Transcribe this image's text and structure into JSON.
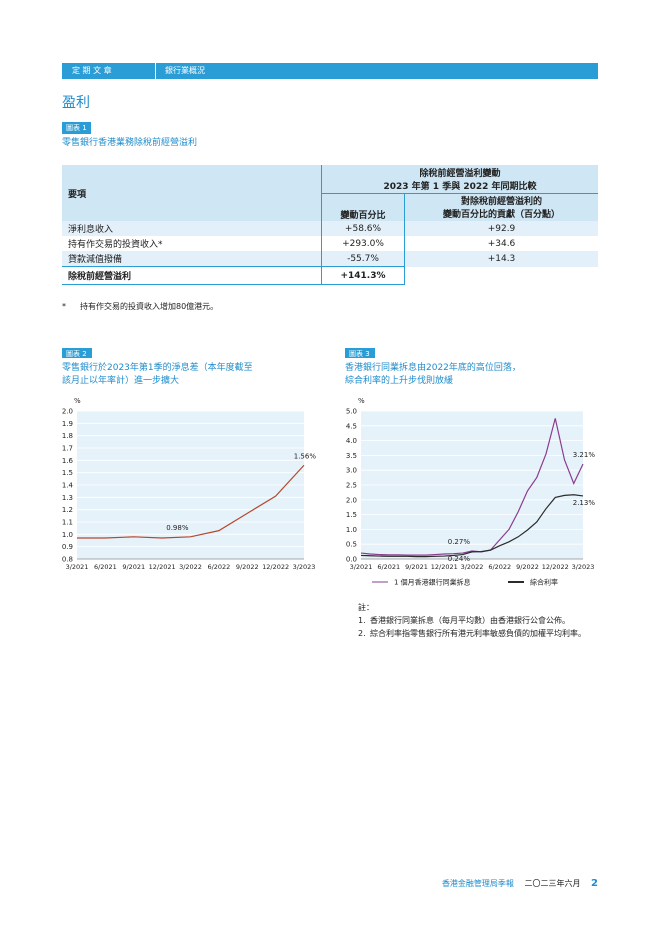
{
  "header": {
    "section": "定 期 文 章",
    "subsection": "銀行業概況"
  },
  "heading": "盈利",
  "table1": {
    "tag": "圖表 1",
    "title": "零售銀行香港業務除稅前經營溢利",
    "col_item": "要項",
    "group_title": [
      "除稅前經營溢利變動",
      "2023 年第 1 季與 2022 年同期比較"
    ],
    "col_change": "變動百分比",
    "col_contrib": [
      "對除稅前經營溢利的",
      "變動百分比的貢獻（百分點）"
    ],
    "rows": [
      [
        "淨利息收入",
        "+58.6%",
        "+92.9"
      ],
      [
        "持有作交易的投資收入*",
        "+293.0%",
        "+34.6"
      ],
      [
        "貸款減值撥備",
        "-55.7%",
        "+14.3"
      ]
    ],
    "total": {
      "label": "除稅前經營溢利",
      "change": "+141.3%"
    }
  },
  "footnote": {
    "mark": "*",
    "text": "持有作交易的投資收入增加80億港元。"
  },
  "chart_data": [
    {
      "type": "line",
      "tag": "圖表 2",
      "title": [
        "零售銀行於2023年第1季的淨息差（本年度截至",
        "該月止以年率計）進一步擴大"
      ],
      "y_label": "%",
      "categories": [
        "3/2021",
        "6/2021",
        "9/2021",
        "12/2021",
        "3/2022",
        "6/2022",
        "9/2022",
        "12/2022",
        "3/2023"
      ],
      "series": [
        {
          "color": "#b5482c",
          "values": [
            0.97,
            0.97,
            0.98,
            0.97,
            0.98,
            1.03,
            1.17,
            1.31,
            1.56
          ],
          "value_labels": [
            null,
            null,
            null,
            null,
            "0.98%",
            null,
            null,
            null,
            "1.56%"
          ]
        }
      ],
      "ylim": [
        0.8,
        2.0
      ],
      "yticks": [
        0.8,
        0.9,
        {
          "value": 1,
          "label": "1.0"
        },
        1.1,
        1.2,
        1.3,
        1.4,
        1.5,
        1.6,
        1.7,
        1.8,
        1.9,
        {
          "value": 2,
          "label": "2.0"
        }
      ],
      "grid": true
    },
    {
      "type": "line",
      "tag": "圖表 3",
      "title": [
        "香港銀行同業拆息由2022年底的高位回落，",
        "綜合利率的上升步伐則放緩"
      ],
      "y_label": "%",
      "categories": [
        "3/2021",
        null,
        null,
        "6/2021",
        null,
        null,
        "9/2021",
        null,
        null,
        "12/2021",
        null,
        null,
        "3/2022",
        null,
        null,
        "6/2022",
        null,
        null,
        "9/2022",
        null,
        null,
        "12/2022",
        null,
        null,
        "3/2023"
      ],
      "series": [
        {
          "name": "1 個月香港銀行同業拆息",
          "color": "#8a3c8e",
          "values": [
            0.2,
            0.17,
            0.15,
            0.14,
            0.14,
            0.13,
            0.13,
            0.13,
            0.15,
            0.17,
            0.18,
            0.2,
            0.27,
            0.24,
            0.3,
            0.65,
            1.0,
            1.6,
            2.3,
            2.75,
            3.55,
            4.75,
            3.35,
            2.55,
            3.21
          ],
          "value_labels": [
            null,
            null,
            null,
            null,
            null,
            null,
            null,
            null,
            null,
            null,
            null,
            null,
            "0.27%",
            null,
            null,
            null,
            null,
            null,
            null,
            null,
            null,
            null,
            null,
            null,
            "3.21%"
          ]
        },
        {
          "name": "綜合利率",
          "color": "#2b2b2b",
          "values": [
            0.12,
            0.11,
            0.1,
            0.09,
            0.09,
            0.09,
            0.08,
            0.08,
            0.09,
            0.1,
            0.12,
            0.15,
            0.24,
            0.25,
            0.3,
            0.45,
            0.58,
            0.75,
            0.98,
            1.25,
            1.7,
            2.08,
            2.15,
            2.17,
            2.13
          ],
          "value_labels": [
            null,
            null,
            null,
            null,
            null,
            null,
            null,
            null,
            null,
            null,
            null,
            null,
            "0.24%",
            null,
            null,
            null,
            null,
            null,
            null,
            null,
            null,
            null,
            null,
            null,
            "2.13%"
          ]
        }
      ],
      "ylim": [
        0,
        5
      ],
      "yticks": [
        {
          "value": 0,
          "label": "0.0"
        },
        0.5,
        {
          "value": 1,
          "label": "1.0"
        },
        1.5,
        {
          "value": 2,
          "label": "2.0"
        },
        2.5,
        {
          "value": 3,
          "label": "3.0"
        },
        3.5,
        {
          "value": 4,
          "label": "4.0"
        },
        4.5,
        {
          "value": 5,
          "label": "5.0"
        }
      ],
      "grid": true
    }
  ],
  "notes": {
    "title": "註：",
    "items": [
      {
        "num": "1.",
        "text": "香港銀行同業拆息（每月平均數）由香港銀行公會公佈。"
      },
      {
        "num": "2.",
        "text": "綜合利率指零售銀行所有港元利率敏感負債的加權平均利率。"
      }
    ]
  },
  "footer": {
    "publication": "香港金融管理局季報",
    "date": "二〇二三年六月",
    "page": "2"
  }
}
